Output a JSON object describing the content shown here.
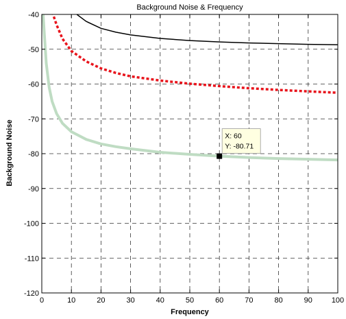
{
  "chart_data": {
    "type": "line",
    "title": "Background Noise & Frequency",
    "xlabel": "Frequency",
    "ylabel": "Background Noise",
    "xlim": [
      0,
      100
    ],
    "ylim": [
      -120,
      -40
    ],
    "xticks": [
      0,
      10,
      20,
      30,
      40,
      50,
      60,
      70,
      80,
      90,
      100
    ],
    "yticks": [
      -120,
      -110,
      -100,
      -90,
      -80,
      -70,
      -60,
      -50,
      -40
    ],
    "grid": true,
    "grid_style": "dashed",
    "series": [
      {
        "color": "#000000",
        "style": "solid",
        "x": [
          10,
          12,
          15,
          20,
          25,
          30,
          40,
          50,
          60,
          70,
          80,
          90,
          100
        ],
        "y": [
          -38.5,
          -40.1,
          -42.0,
          -44.0,
          -45.1,
          -45.9,
          -46.9,
          -47.5,
          -47.9,
          -48.2,
          -48.4,
          -48.6,
          -48.7
        ]
      },
      {
        "color": "#e8141c",
        "style": "dotted",
        "x": [
          3,
          5,
          7,
          10,
          15,
          20,
          25,
          30,
          40,
          50,
          60,
          70,
          80,
          90,
          100
        ],
        "y": [
          -38.0,
          -43.0,
          -47.0,
          -50.5,
          -53.5,
          -55.5,
          -56.8,
          -57.8,
          -59.0,
          -59.9,
          -60.6,
          -61.2,
          -61.7,
          -62.1,
          -62.5
        ]
      },
      {
        "color": "#bfdcc3",
        "style": "solid",
        "x": [
          0.3,
          0.8,
          1.5,
          2.5,
          3.5,
          5,
          7,
          10,
          15,
          20,
          25,
          30,
          40,
          50,
          60,
          70,
          80,
          90,
          100
        ],
        "y": [
          -38.0,
          -45.0,
          -54.0,
          -61.0,
          -65.0,
          -68.5,
          -71.3,
          -73.7,
          -75.9,
          -77.2,
          -78.0,
          -78.6,
          -79.6,
          -80.2,
          -80.71,
          -81.1,
          -81.4,
          -81.6,
          -81.8
        ]
      }
    ],
    "datatip": {
      "x_value": 60,
      "y_value": -80.71,
      "x_text": "X: 60",
      "y_text": "Y: -80.71"
    }
  }
}
